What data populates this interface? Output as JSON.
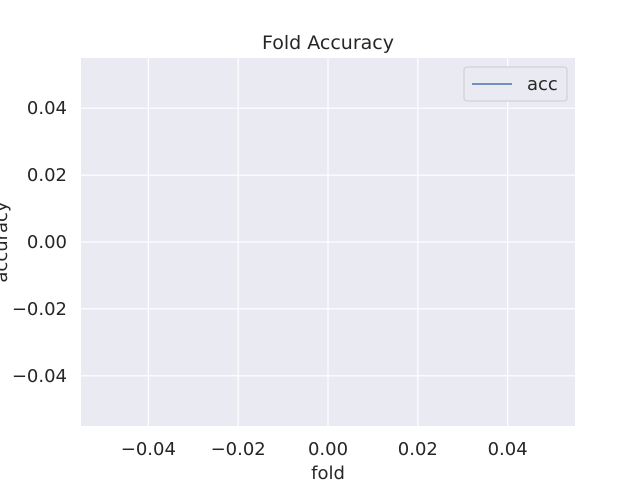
{
  "chart_data": {
    "type": "line",
    "title": "Fold Accuracy",
    "xlabel": "fold",
    "ylabel": "accuracy",
    "xlim": [
      -0.055,
      0.055
    ],
    "ylim": [
      -0.055,
      0.055
    ],
    "xticks": [
      -0.04,
      -0.02,
      0.0,
      0.02,
      0.04
    ],
    "yticks": [
      -0.04,
      -0.02,
      0.0,
      0.02,
      0.04
    ],
    "xtick_labels": [
      "−0.04",
      "−0.02",
      "0.00",
      "0.02",
      "0.04"
    ],
    "ytick_labels": [
      "−0.04",
      "−0.02",
      "0.00",
      "0.02",
      "0.04"
    ],
    "grid": true,
    "legend_position": "top-right",
    "series": [
      {
        "name": "acc",
        "x": [],
        "y": [],
        "color": "#4c72b0"
      }
    ],
    "colors": {
      "plot_background": "#eaeaf2",
      "grid": "#ffffff",
      "text": "#262626"
    }
  }
}
